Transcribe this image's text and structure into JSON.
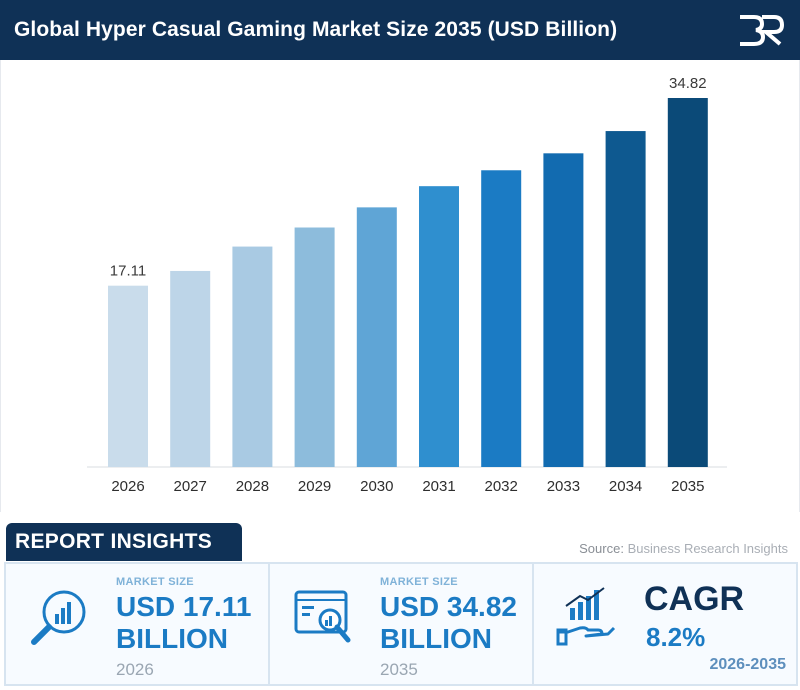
{
  "header": {
    "title": "Global Hyper Casual Gaming Market Size 2035 (USD Billion)"
  },
  "colors": {
    "header_bg": "#0f3156",
    "bar_colors": [
      "#c9dceb",
      "#bdd5e8",
      "#a9cae3",
      "#8dbcdc",
      "#5fa5d6",
      "#2f8fcf",
      "#1b7bc4",
      "#126bb0",
      "#0e5990",
      "#0b4a78"
    ]
  },
  "chart_data": {
    "type": "bar",
    "title": "Global Hyper Casual Gaming Market Size 2035 (USD Billion)",
    "categories": [
      "2026",
      "2027",
      "2028",
      "2029",
      "2030",
      "2031",
      "2032",
      "2033",
      "2034",
      "2035"
    ],
    "values": [
      17.11,
      18.5,
      20.8,
      22.6,
      24.5,
      26.5,
      28.0,
      29.6,
      31.7,
      34.82
    ],
    "data_labels": [
      "17.11",
      "",
      "",
      "",
      "",
      "",
      "",
      "",
      "",
      "34.82"
    ],
    "xlabel": "",
    "ylabel": "",
    "ylim": [
      0,
      36
    ],
    "grid": false,
    "legend": "none"
  },
  "insights": {
    "title": "REPORT INSIGHTS",
    "source_prefix": "Source:",
    "source_name": "Business Research Insights",
    "cards": [
      {
        "eyebrow": "MARKET SIZE",
        "line1": "USD 17.11",
        "line2": "BILLION",
        "year": "2026",
        "icon": "chart-magnifier-icon"
      },
      {
        "eyebrow": "MARKET SIZE",
        "line1": "USD 34.82",
        "line2": "BILLION",
        "year": "2035",
        "icon": "monitor-analytics-icon"
      }
    ],
    "cagr": {
      "title": "CAGR",
      "value": "8.2%",
      "years": "2026-2035",
      "icon": "growth-hand-icon"
    }
  }
}
